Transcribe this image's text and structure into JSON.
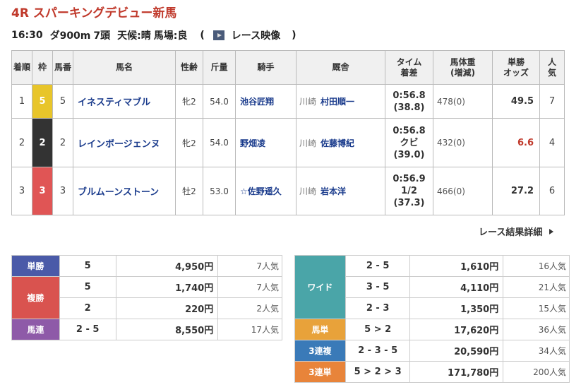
{
  "race": {
    "title": "4R スパーキングデビュー新馬",
    "time": "16:30",
    "course": "ダ900m",
    "heads": "7頭",
    "weather": "天候:晴",
    "track": "馬場:良",
    "paren_open": "(",
    "video_label": "レース映像",
    "paren_close": ")"
  },
  "result_table": {
    "headers": {
      "rank": "着順",
      "waku": "枠",
      "umaban": "馬番",
      "horse": "馬名",
      "sexage": "性齢",
      "weight_carried": "斤量",
      "jockey": "騎手",
      "trainer": "厩舎",
      "time_l1": "タイム",
      "time_l2": "着差",
      "bw_l1": "馬体重",
      "bw_l2": "(増減)",
      "odds_l1": "単勝",
      "odds_l2": "オッズ",
      "pop_l1": "人",
      "pop_l2": "気"
    },
    "rows": [
      {
        "rank": "1",
        "waku": "5",
        "waku_color": "#e8c52a",
        "umaban": "5",
        "horse": "イネスティマブル",
        "sexage": "牝2",
        "kinryo": "54.0",
        "jockey": "池谷匠翔",
        "area": "川崎",
        "trainer": "村田順一",
        "time": "0:56.8",
        "margin": "",
        "diff": "(38.8)",
        "bodyweight": "478(0)",
        "odds": "49.5",
        "odds_color": "#333333",
        "pop": "7"
      },
      {
        "rank": "2",
        "waku": "2",
        "waku_color": "#333333",
        "umaban": "2",
        "horse": "レインボージェンヌ",
        "sexage": "牝2",
        "kinryo": "54.0",
        "jockey": "野畑凌",
        "area": "川崎",
        "trainer": "佐藤博紀",
        "time": "0:56.8",
        "margin": "クビ",
        "diff": "(39.0)",
        "bodyweight": "432(0)",
        "odds": "6.6",
        "odds_color": "#c0392b",
        "pop": "4"
      },
      {
        "rank": "3",
        "waku": "3",
        "waku_color": "#e05555",
        "umaban": "3",
        "horse": "ブルムーンストーン",
        "sexage": "牡2",
        "kinryo": "53.0",
        "jockey": "☆佐野遥久",
        "area": "川崎",
        "trainer": "岩本洋",
        "time": "0:56.9",
        "margin": "1/2",
        "diff": "(37.3)",
        "bodyweight": "466(0)",
        "odds": "27.2",
        "odds_color": "#333333",
        "pop": "6"
      }
    ]
  },
  "detail_link": "レース結果詳細",
  "payouts_left": {
    "tansho": {
      "label": "単勝",
      "color": "#4a5aa8",
      "rows": [
        {
          "combo": "5",
          "amount": "4,950円",
          "pop": "7人気"
        }
      ]
    },
    "fukusho": {
      "label": "複勝",
      "color": "#d9534f",
      "rows": [
        {
          "combo": "5",
          "amount": "1,740円",
          "pop": "7人気"
        },
        {
          "combo": "2",
          "amount": "220円",
          "pop": "2人気"
        }
      ]
    },
    "umaren": {
      "label": "馬連",
      "color": "#8e5aa8",
      "rows": [
        {
          "combo": "2 - 5",
          "amount": "8,550円",
          "pop": "17人気"
        }
      ]
    }
  },
  "payouts_right": {
    "wide": {
      "label": "ワイド",
      "color": "#4aa5a8",
      "rows": [
        {
          "combo": "2 - 5",
          "amount": "1,610円",
          "pop": "16人気"
        },
        {
          "combo": "3 - 5",
          "amount": "4,110円",
          "pop": "21人気"
        },
        {
          "combo": "2 - 3",
          "amount": "1,350円",
          "pop": "15人気"
        }
      ]
    },
    "umatan": {
      "label": "馬単",
      "color": "#e8a23a",
      "rows": [
        {
          "combo": "5 > 2",
          "amount": "17,620円",
          "pop": "36人気"
        }
      ]
    },
    "sanrenpuku": {
      "label": "3連複",
      "color": "#3a7ab8",
      "rows": [
        {
          "combo": "2 - 3 - 5",
          "amount": "20,590円",
          "pop": "34人気"
        }
      ]
    },
    "sanrentan": {
      "label": "3連単",
      "color": "#e8843a",
      "rows": [
        {
          "combo": "5 > 2 > 3",
          "amount": "171,780円",
          "pop": "200人気"
        }
      ]
    }
  }
}
